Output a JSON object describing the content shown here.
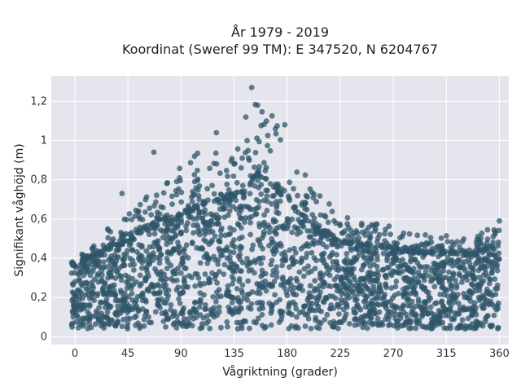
{
  "chart_data": {
    "type": "scatter",
    "title_line1": "År 1979 - 2019",
    "title_line2": "Koordinat (Sweref 99 TM): E 347520, N 6204767",
    "xlabel": "Vågriktning (grader)",
    "ylabel": "Signifikant våghöjd (m)",
    "xlim": [
      -20,
      368
    ],
    "ylim": [
      -0.04,
      1.33
    ],
    "x_ticks": [
      0,
      45,
      90,
      135,
      180,
      225,
      270,
      315,
      360
    ],
    "x_tick_labels": [
      "0",
      "45",
      "90",
      "135",
      "180",
      "225",
      "270",
      "315",
      "360"
    ],
    "y_ticks": [
      0,
      0.2,
      0.4,
      0.6,
      0.8,
      1.0,
      1.2
    ],
    "y_tick_labels": [
      "0",
      "0,2",
      "0,4",
      "0,6",
      "0,8",
      "1",
      "1,2"
    ],
    "grid": true,
    "marker_color": "#2f5569",
    "background_color": "#e5e5ee",
    "x_range_observed": [
      -3,
      360
    ],
    "y_range_observed": [
      0.02,
      1.27
    ],
    "envelope": {
      "direction": [
        0,
        20,
        45,
        70,
        90,
        110,
        130,
        145,
        155,
        165,
        180,
        200,
        225,
        250,
        270,
        290,
        315,
        335,
        360
      ],
      "upper_height": [
        0.4,
        0.52,
        0.62,
        0.82,
        0.86,
        0.98,
        1.02,
        1.1,
        1.27,
        1.18,
        1.0,
        0.78,
        0.62,
        0.58,
        0.56,
        0.52,
        0.52,
        0.5,
        0.59
      ]
    },
    "notable_points": [
      {
        "x": 150,
        "y": 1.27
      },
      {
        "x": 155,
        "y": 1.18
      },
      {
        "x": 145,
        "y": 1.12
      },
      {
        "x": 178,
        "y": 1.08
      },
      {
        "x": 120,
        "y": 1.04
      },
      {
        "x": 67,
        "y": 0.94
      },
      {
        "x": 40,
        "y": 0.73
      },
      {
        "x": 360,
        "y": 0.59
      }
    ]
  }
}
